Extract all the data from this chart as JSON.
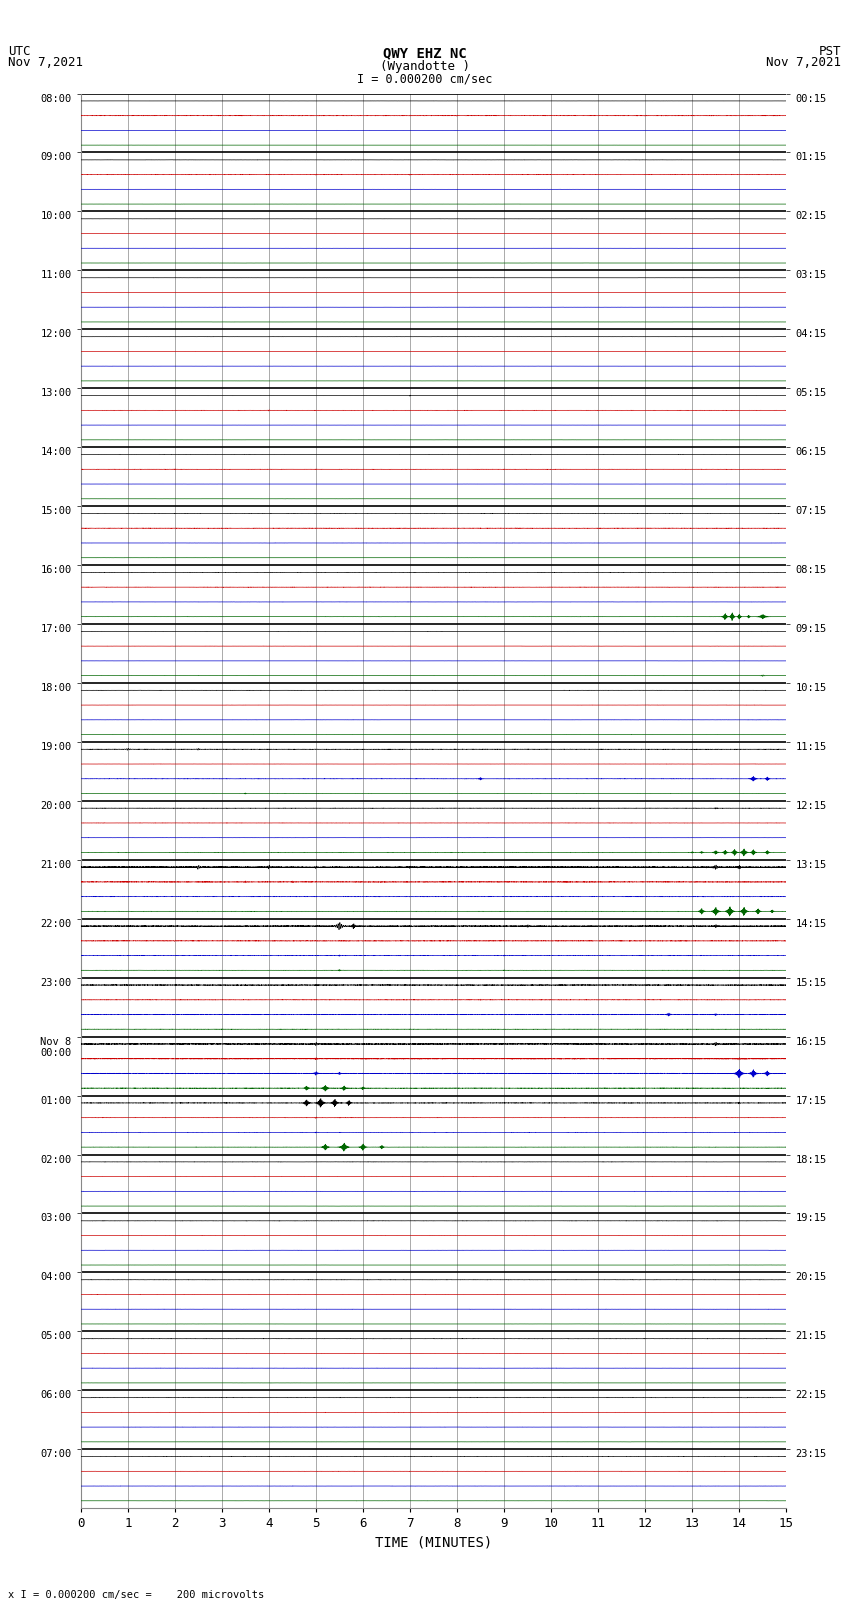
{
  "title_line1": "QWY EHZ NC",
  "title_line2": "(Wyandotte )",
  "title_scale": "I = 0.000200 cm/sec",
  "left_header": "UTC\nNov 7,2021",
  "right_header": "PST\nNov 7,2021",
  "bottom_note": "x I = 0.000200 cm/sec =    200 microvolts",
  "xlabel": "TIME (MINUTES)",
  "utc_labels": [
    "08:00",
    "09:00",
    "10:00",
    "11:00",
    "12:00",
    "13:00",
    "14:00",
    "15:00",
    "16:00",
    "17:00",
    "18:00",
    "19:00",
    "20:00",
    "21:00",
    "22:00",
    "23:00",
    "Nov 8\n00:00",
    "01:00",
    "02:00",
    "03:00",
    "04:00",
    "05:00",
    "06:00",
    "07:00"
  ],
  "pst_labels": [
    "00:15",
    "01:15",
    "02:15",
    "03:15",
    "04:15",
    "05:15",
    "06:15",
    "07:15",
    "08:15",
    "09:15",
    "10:15",
    "11:15",
    "12:15",
    "13:15",
    "14:15",
    "15:15",
    "16:15",
    "17:15",
    "18:15",
    "19:15",
    "20:15",
    "21:15",
    "22:15",
    "23:15"
  ],
  "n_rows": 24,
  "n_channels": 4,
  "x_min": 0,
  "x_max": 15,
  "x_ticks": [
    0,
    1,
    2,
    3,
    4,
    5,
    6,
    7,
    8,
    9,
    10,
    11,
    12,
    13,
    14,
    15
  ],
  "background_color": "#ffffff",
  "grid_color": "#888888",
  "trace_colors": [
    "#000000",
    "#cc0000",
    "#0000cc",
    "#006600"
  ],
  "figsize": [
    8.5,
    16.13
  ],
  "dpi": 100
}
